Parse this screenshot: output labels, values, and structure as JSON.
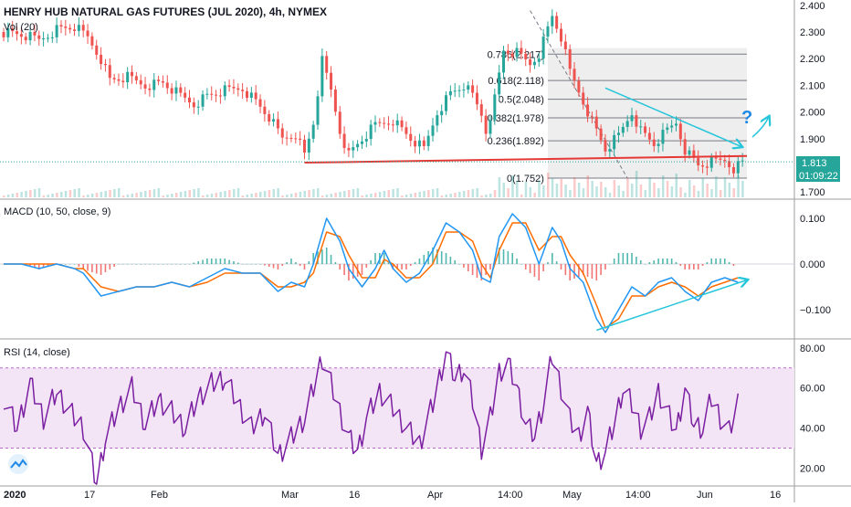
{
  "header": {
    "title": "HENRY HUB NATURAL GAS FUTURES (JUL 2020), 4h, NYMEX",
    "vol_label": "Vol (20)"
  },
  "indicators": {
    "macd_label": "MACD (10, 50, close, 9)",
    "rsi_label": "RSI (14, close)"
  },
  "price_tags": {
    "last_price": "1.813",
    "countdown": "01:09:22"
  },
  "annotations": {
    "question_mark": "?"
  },
  "colors": {
    "up": "#26a69a",
    "down": "#ef5350",
    "macd_line": "#2196f3",
    "signal_line": "#ff6d00",
    "rsi_line": "#7b1fa2",
    "rsi_band": "#f3e5f5",
    "support_line": "#e53935",
    "arrow": "#26c6da",
    "fib_fill": "#e0e0e0",
    "tag_bg": "#26a69a"
  },
  "chart_data": [
    {
      "type": "candlestick",
      "title": "HENRY HUB NATURAL GAS FUTURES (JUL 2020), 4h, NYMEX",
      "y_ticks": [
        "2.400",
        "2.300",
        "2.200",
        "2.100",
        "2.000",
        "1.900",
        "1.800",
        "1.700"
      ],
      "ylim": [
        1.68,
        2.42
      ],
      "x_ticks": [
        "2020",
        "17",
        "Feb",
        "Mar",
        "16",
        "Apr",
        "14:00",
        "May",
        "14:00",
        "Jun",
        "16"
      ],
      "fib_levels": [
        {
          "label": "0.786(2.217)",
          "value": 2.217
        },
        {
          "label": "0.618(2.118)",
          "value": 2.118
        },
        {
          "label": "0.5(2.048)",
          "value": 2.048
        },
        {
          "label": "0.382(1.978)",
          "value": 1.978
        },
        {
          "label": "0.236(1.892)",
          "value": 1.892
        },
        {
          "label": "0(1.752)",
          "value": 1.752
        }
      ],
      "fib_top": 2.24,
      "support_level": 1.81,
      "last_price": 1.813,
      "close_path": [
        [
          0,
          2.3
        ],
        [
          4,
          2.29
        ],
        [
          8,
          2.27
        ],
        [
          12,
          2.31
        ],
        [
          16,
          2.32
        ],
        [
          19,
          2.28
        ],
        [
          22,
          2.2
        ],
        [
          24,
          2.12
        ],
        [
          28,
          2.13
        ],
        [
          32,
          2.1
        ],
        [
          36,
          2.11
        ],
        [
          40,
          2.06
        ],
        [
          43,
          2.03
        ],
        [
          46,
          2.06
        ],
        [
          50,
          2.08
        ],
        [
          54,
          2.09
        ],
        [
          57,
          2.04
        ],
        [
          60,
          1.98
        ],
        [
          63,
          1.9
        ],
        [
          66,
          1.92
        ],
        [
          68,
          1.84
        ],
        [
          70,
          1.96
        ],
        [
          72,
          2.19
        ],
        [
          74,
          2.08
        ],
        [
          76,
          1.93
        ],
        [
          78,
          1.84
        ],
        [
          80,
          1.88
        ],
        [
          84,
          1.95
        ],
        [
          88,
          1.97
        ],
        [
          92,
          1.9
        ],
        [
          95,
          1.86
        ],
        [
          98,
          2.0
        ],
        [
          101,
          2.07
        ],
        [
          104,
          2.1
        ],
        [
          106,
          2.06
        ],
        [
          108,
          1.99
        ],
        [
          109,
          1.93
        ],
        [
          111,
          2.05
        ],
        [
          113,
          2.23
        ],
        [
          116,
          2.22
        ],
        [
          119,
          2.18
        ],
        [
          121,
          2.22
        ],
        [
          124,
          2.36
        ],
        [
          126,
          2.28
        ],
        [
          128,
          2.15
        ],
        [
          131,
          2.04
        ],
        [
          134,
          1.93
        ],
        [
          136,
          1.86
        ],
        [
          139,
          1.91
        ],
        [
          142,
          2.0
        ],
        [
          144,
          1.93
        ],
        [
          147,
          1.88
        ],
        [
          150,
          1.93
        ],
        [
          152,
          1.96
        ],
        [
          154,
          1.86
        ],
        [
          157,
          1.8
        ],
        [
          160,
          1.81
        ],
        [
          163,
          1.82
        ],
        [
          165,
          1.79
        ],
        [
          167,
          1.81
        ]
      ]
    },
    {
      "type": "line",
      "title": "MACD (10, 50, close, 9)",
      "y_ticks": [
        "0.100",
        "0.000",
        "−0.100"
      ],
      "ylim": [
        -0.16,
        0.14
      ],
      "series": [
        {
          "values": [
            [
              0,
              0.0
            ],
            [
              4,
              0.0
            ],
            [
              8,
              -0.01
            ],
            [
              12,
              0.0
            ],
            [
              16,
              -0.01
            ],
            [
              18,
              -0.02
            ],
            [
              22,
              -0.07
            ],
            [
              26,
              -0.06
            ],
            [
              30,
              -0.05
            ],
            [
              34,
              -0.05
            ],
            [
              38,
              -0.04
            ],
            [
              42,
              -0.05
            ],
            [
              46,
              -0.03
            ],
            [
              50,
              -0.01
            ],
            [
              54,
              -0.02
            ],
            [
              58,
              -0.02
            ],
            [
              62,
              -0.06
            ],
            [
              65,
              -0.04
            ],
            [
              68,
              -0.05
            ],
            [
              70,
              0.0
            ],
            [
              73,
              0.1
            ],
            [
              76,
              0.05
            ],
            [
              78,
              -0.01
            ],
            [
              81,
              -0.05
            ],
            [
              84,
              -0.01
            ],
            [
              86,
              0.03
            ],
            [
              88,
              -0.01
            ],
            [
              91,
              -0.04
            ],
            [
              94,
              -0.02
            ],
            [
              97,
              0.03
            ],
            [
              100,
              0.09
            ],
            [
              103,
              0.07
            ],
            [
              106,
              0.03
            ],
            [
              108,
              -0.03
            ],
            [
              110,
              -0.04
            ],
            [
              112,
              0.06
            ],
            [
              115,
              0.11
            ],
            [
              118,
              0.08
            ],
            [
              121,
              0.0
            ],
            [
              124,
              0.08
            ],
            [
              126,
              0.05
            ],
            [
              128,
              -0.01
            ],
            [
              131,
              -0.04
            ],
            [
              134,
              -0.12
            ],
            [
              136,
              -0.15
            ],
            [
              139,
              -0.1
            ],
            [
              142,
              -0.05
            ],
            [
              145,
              -0.07
            ],
            [
              148,
              -0.04
            ],
            [
              151,
              -0.03
            ],
            [
              154,
              -0.06
            ],
            [
              157,
              -0.08
            ],
            [
              160,
              -0.04
            ],
            [
              163,
              -0.03
            ],
            [
              166,
              -0.04
            ]
          ]
        },
        {
          "values": [
            [
              0,
              0.0
            ],
            [
              4,
              0.0
            ],
            [
              8,
              0.0
            ],
            [
              12,
              0.0
            ],
            [
              16,
              -0.01
            ],
            [
              18,
              -0.01
            ],
            [
              22,
              -0.05
            ],
            [
              26,
              -0.06
            ],
            [
              30,
              -0.05
            ],
            [
              34,
              -0.05
            ],
            [
              38,
              -0.04
            ],
            [
              42,
              -0.05
            ],
            [
              46,
              -0.04
            ],
            [
              50,
              -0.02
            ],
            [
              54,
              -0.02
            ],
            [
              58,
              -0.02
            ],
            [
              62,
              -0.05
            ],
            [
              65,
              -0.05
            ],
            [
              68,
              -0.04
            ],
            [
              70,
              -0.02
            ],
            [
              73,
              0.07
            ],
            [
              76,
              0.06
            ],
            [
              78,
              0.02
            ],
            [
              81,
              -0.03
            ],
            [
              84,
              -0.03
            ],
            [
              86,
              0.01
            ],
            [
              88,
              0.0
            ],
            [
              91,
              -0.03
            ],
            [
              94,
              -0.03
            ],
            [
              97,
              0.0
            ],
            [
              100,
              0.07
            ],
            [
              103,
              0.07
            ],
            [
              106,
              0.05
            ],
            [
              108,
              0.0
            ],
            [
              110,
              -0.03
            ],
            [
              112,
              0.03
            ],
            [
              115,
              0.09
            ],
            [
              118,
              0.09
            ],
            [
              121,
              0.03
            ],
            [
              124,
              0.06
            ],
            [
              126,
              0.06
            ],
            [
              128,
              0.02
            ],
            [
              131,
              -0.02
            ],
            [
              134,
              -0.09
            ],
            [
              136,
              -0.14
            ],
            [
              139,
              -0.12
            ],
            [
              142,
              -0.07
            ],
            [
              145,
              -0.07
            ],
            [
              148,
              -0.05
            ],
            [
              151,
              -0.04
            ],
            [
              154,
              -0.05
            ],
            [
              157,
              -0.07
            ],
            [
              160,
              -0.05
            ],
            [
              163,
              -0.04
            ],
            [
              166,
              -0.03
            ]
          ]
        }
      ]
    },
    {
      "type": "line",
      "title": "RSI (14, close)",
      "y_ticks": [
        "80.00",
        "60.00",
        "40.00",
        "20.00"
      ],
      "ylim": [
        12,
        84
      ],
      "band": [
        30,
        70
      ],
      "series": [
        {
          "values": [
            [
              0,
              55
            ],
            [
              3,
              40
            ],
            [
              6,
              62
            ],
            [
              9,
              45
            ],
            [
              12,
              58
            ],
            [
              15,
              48
            ],
            [
              18,
              40
            ],
            [
              20,
              22
            ],
            [
              21,
              12
            ],
            [
              23,
              35
            ],
            [
              26,
              50
            ],
            [
              29,
              60
            ],
            [
              32,
              42
            ],
            [
              35,
              54
            ],
            [
              38,
              48
            ],
            [
              41,
              40
            ],
            [
              44,
              55
            ],
            [
              47,
              62
            ],
            [
              50,
              65
            ],
            [
              53,
              52
            ],
            [
              56,
              40
            ],
            [
              59,
              48
            ],
            [
              62,
              26
            ],
            [
              65,
              35
            ],
            [
              68,
              45
            ],
            [
              70,
              60
            ],
            [
              72,
              75
            ],
            [
              74,
              62
            ],
            [
              76,
              48
            ],
            [
              78,
              35
            ],
            [
              80,
              28
            ],
            [
              82,
              45
            ],
            [
              85,
              58
            ],
            [
              88,
              50
            ],
            [
              91,
              40
            ],
            [
              94,
              32
            ],
            [
              97,
              52
            ],
            [
              100,
              78
            ],
            [
              102,
              65
            ],
            [
              104,
              70
            ],
            [
              106,
              54
            ],
            [
              108,
              30
            ],
            [
              110,
              45
            ],
            [
              112,
              68
            ],
            [
              114,
              72
            ],
            [
              116,
              60
            ],
            [
              118,
              42
            ],
            [
              120,
              36
            ],
            [
              122,
              52
            ],
            [
              124,
              76
            ],
            [
              126,
              60
            ],
            [
              128,
              44
            ],
            [
              130,
              36
            ],
            [
              132,
              48
            ],
            [
              134,
              22
            ],
            [
              136,
              28
            ],
            [
              138,
              42
            ],
            [
              140,
              60
            ],
            [
              142,
              52
            ],
            [
              144,
              40
            ],
            [
              146,
              45
            ],
            [
              148,
              58
            ],
            [
              150,
              48
            ],
            [
              152,
              38
            ],
            [
              154,
              60
            ],
            [
              156,
              42
            ],
            [
              158,
              40
            ],
            [
              160,
              55
            ],
            [
              162,
              45
            ],
            [
              164,
              38
            ],
            [
              166,
              53
            ]
          ]
        }
      ]
    }
  ]
}
